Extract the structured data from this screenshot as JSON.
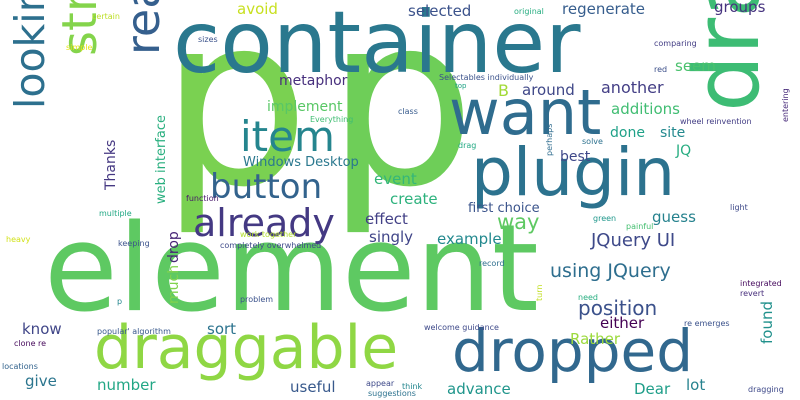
{
  "words": [
    {
      "text": "p",
      "color": "#7ad151"
    },
    {
      "text": "p",
      "color": "#6ece58"
    },
    {
      "text": "container",
      "color": "#2a788e"
    },
    {
      "text": "element",
      "color": "#5ec962"
    },
    {
      "text": "dragged",
      "color": "#3dbc74"
    },
    {
      "text": "plugin",
      "color": "#2c728e"
    },
    {
      "text": "want",
      "color": "#2f6c8e"
    },
    {
      "text": "draggable",
      "color": "#8fd744"
    },
    {
      "text": "dropped",
      "color": "#31688e"
    },
    {
      "text": "strong",
      "color": "#84d44b"
    },
    {
      "text": "really",
      "color": "#355f8d"
    },
    {
      "text": "looking",
      "color": "#2d708e"
    },
    {
      "text": "item",
      "color": "#25858e"
    },
    {
      "text": "already",
      "color": "#443983"
    },
    {
      "text": "button",
      "color": "#33638d"
    },
    {
      "text": "JQuery UI",
      "color": "#3e4989"
    },
    {
      "text": "using JQuery",
      "color": "#2e6e8e"
    },
    {
      "text": "position",
      "color": "#3b518b"
    },
    {
      "text": "regenerate",
      "color": "#365d8d"
    },
    {
      "text": "another",
      "color": "#433e85"
    },
    {
      "text": "around",
      "color": "#3f4788"
    },
    {
      "text": "B",
      "color": "#a2da37"
    },
    {
      "text": "selected",
      "color": "#3b528b"
    },
    {
      "text": "groups",
      "color": "#46337f"
    },
    {
      "text": "avoid",
      "color": "#c8e020"
    },
    {
      "text": "seem",
      "color": "#4ac16d"
    },
    {
      "text": "additions",
      "color": "#40bd72"
    },
    {
      "text": "metaphor",
      "color": "#472f7d"
    },
    {
      "text": "implement",
      "color": "#58c765"
    },
    {
      "text": "done",
      "color": "#1fa188"
    },
    {
      "text": "site",
      "color": "#23898e"
    },
    {
      "text": "JQ",
      "color": "#27ad81"
    },
    {
      "text": "best",
      "color": "#3f4889"
    },
    {
      "text": "web interface",
      "color": "#29af7f"
    },
    {
      "text": "Thanks",
      "color": "#453882"
    },
    {
      "text": "Windows Desktop",
      "color": "#2a788e"
    },
    {
      "text": "event",
      "color": "#34b679"
    },
    {
      "text": "create",
      "color": "#2db27d"
    },
    {
      "text": "first choice",
      "color": "#3a538b"
    },
    {
      "text": "guess",
      "color": "#26828e"
    },
    {
      "text": "effect",
      "color": "#424086"
    },
    {
      "text": "way",
      "color": "#5ec962"
    },
    {
      "text": "singly",
      "color": "#404588"
    },
    {
      "text": "example",
      "color": "#23898e"
    },
    {
      "text": "drop",
      "color": "#482576"
    },
    {
      "text": "much",
      "color": "#81d34d"
    },
    {
      "text": "found",
      "color": "#21918c"
    },
    {
      "text": "either",
      "color": "#440154"
    },
    {
      "text": "know",
      "color": "#404688"
    },
    {
      "text": "sort",
      "color": "#2c738e"
    },
    {
      "text": "Rather",
      "color": "#9bd93c"
    },
    {
      "text": "give",
      "color": "#2b758e"
    },
    {
      "text": "number",
      "color": "#22a785"
    },
    {
      "text": "useful",
      "color": "#38598c"
    },
    {
      "text": "advance",
      "color": "#1f958b"
    },
    {
      "text": "Dear",
      "color": "#1f9e89"
    },
    {
      "text": "lot",
      "color": "#26828e"
    },
    {
      "text": "certain",
      "color": "#bddf26"
    },
    {
      "text": "simple",
      "color": "#e5e419"
    },
    {
      "text": "sizes",
      "color": "#3b528b"
    },
    {
      "text": "original",
      "color": "#27ad81"
    },
    {
      "text": "comparing",
      "color": "#433d84"
    },
    {
      "text": "red",
      "color": "#3c4f8a"
    },
    {
      "text": "Selectables individually",
      "color": "#3b528b"
    },
    {
      "text": "top",
      "color": "#20a386"
    },
    {
      "text": "Everything",
      "color": "#40bd72"
    },
    {
      "text": "class",
      "color": "#375b8d"
    },
    {
      "text": "function",
      "color": "#48186a"
    },
    {
      "text": "drag",
      "color": "#23a983"
    },
    {
      "text": "perhaps",
      "color": "#2f6c8e"
    },
    {
      "text": "solve",
      "color": "#2c718e"
    },
    {
      "text": "wheel reinvention",
      "color": "#433e85"
    },
    {
      "text": "entering",
      "color": "#472a7a"
    },
    {
      "text": "light",
      "color": "#3e4989"
    },
    {
      "text": "green",
      "color": "#1f978b"
    },
    {
      "text": "painful",
      "color": "#44bf70"
    },
    {
      "text": "multiple",
      "color": "#22a884"
    },
    {
      "text": "heavy",
      "color": "#d2e21b"
    },
    {
      "text": "keeping",
      "color": "#3b528b"
    },
    {
      "text": "work together",
      "color": "#b2dd2d"
    },
    {
      "text": "completely overwhelmed",
      "color": "#3e4a89"
    },
    {
      "text": "record",
      "color": "#2e6f8e"
    },
    {
      "text": "integrated",
      "color": "#460b5e"
    },
    {
      "text": "revert",
      "color": "#472e7c"
    },
    {
      "text": "problem",
      "color": "#3b528b"
    },
    {
      "text": "need",
      "color": "#28ae80"
    },
    {
      "text": "turn",
      "color": "#c2df23"
    },
    {
      "text": "popular' algorithm",
      "color": "#38588c"
    },
    {
      "text": "welcome guidance",
      "color": "#3e4989"
    },
    {
      "text": "re emerges",
      "color": "#3b528b"
    },
    {
      "text": "clone re",
      "color": "#45085b"
    },
    {
      "text": "locations",
      "color": "#33638d"
    },
    {
      "text": "appear",
      "color": "#3e4989"
    },
    {
      "text": "think",
      "color": "#24868e"
    },
    {
      "text": "suggestions",
      "color": "#2c728e"
    },
    {
      "text": "dragging",
      "color": "#3e4989"
    },
    {
      "text": "p",
      "color": "#24868e"
    }
  ]
}
